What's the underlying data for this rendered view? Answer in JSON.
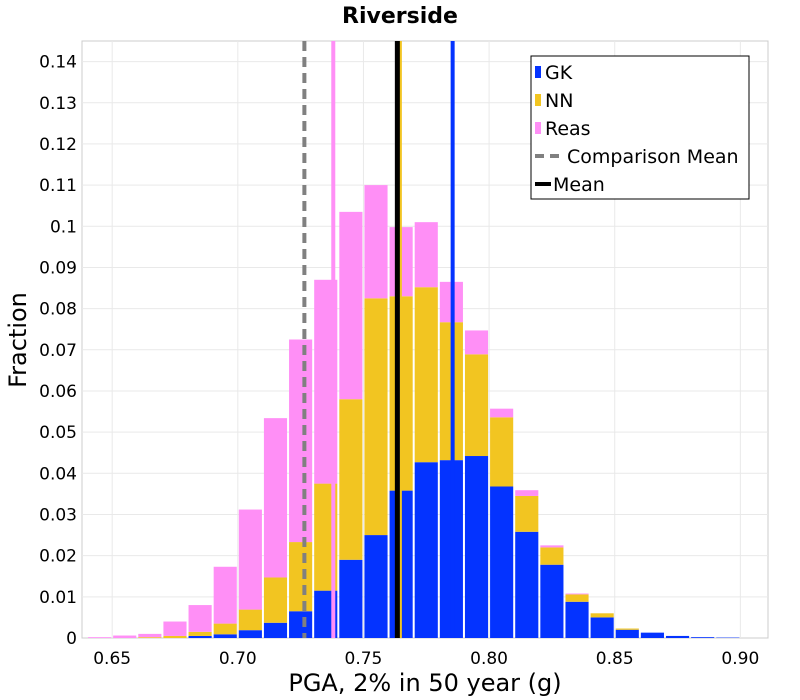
{
  "chart_data": {
    "type": "bar",
    "stacked": true,
    "title": "Riverside",
    "xlabel": "PGA, 2% in 50 year (g)",
    "ylabel": "Fraction",
    "xlim": [
      0.638,
      0.911
    ],
    "ylim": [
      0,
      0.145
    ],
    "bin_width": 0.01,
    "grid": true,
    "legend_position": "top-right",
    "x_ticks": [
      0.65,
      0.7,
      0.75,
      0.8,
      0.85,
      0.9
    ],
    "x_tick_labels": [
      "0.65",
      "0.70",
      "0.75",
      "0.80",
      "0.85",
      "0.90"
    ],
    "y_ticks": [
      0,
      0.01,
      0.02,
      0.03,
      0.04,
      0.05,
      0.06,
      0.07,
      0.08,
      0.09,
      0.1,
      0.11,
      0.12,
      0.13,
      0.14
    ],
    "y_tick_labels": [
      "0",
      "0.01",
      "0.02",
      "0.03",
      "0.04",
      "0.05",
      "0.06",
      "0.07",
      "0.08",
      "0.09",
      "0.1",
      "0.11",
      "0.12",
      "0.13",
      "0.14"
    ],
    "bin_centers": [
      0.645,
      0.655,
      0.665,
      0.675,
      0.685,
      0.695,
      0.705,
      0.715,
      0.725,
      0.735,
      0.745,
      0.755,
      0.765,
      0.775,
      0.785,
      0.795,
      0.805,
      0.815,
      0.825,
      0.835,
      0.845,
      0.855,
      0.865,
      0.875,
      0.885,
      0.895
    ],
    "series": [
      {
        "name": "GK",
        "color": "#0433ff",
        "values": [
          0,
          0,
          0,
          0,
          0.0005,
          0.0009,
          0.0019,
          0.0037,
          0.0065,
          0.0115,
          0.019,
          0.025,
          0.0358,
          0.0427,
          0.0432,
          0.0442,
          0.0368,
          0.0258,
          0.0178,
          0.0088,
          0.005,
          0.002,
          0.0013,
          0.0005,
          0.0002,
          0.0001
        ]
      },
      {
        "name": "NN",
        "color": "#f2c521",
        "values": [
          0,
          0,
          0.0002,
          0.0005,
          0.001,
          0.0026,
          0.005,
          0.011,
          0.0168,
          0.026,
          0.039,
          0.0575,
          0.0472,
          0.0425,
          0.0335,
          0.0247,
          0.0168,
          0.0087,
          0.0042,
          0.0018,
          0.001,
          0.0003,
          0,
          0,
          0,
          0
        ]
      },
      {
        "name": "Reas",
        "color": "#ff8ff6",
        "values": [
          0.0002,
          0.0006,
          0.0008,
          0.0035,
          0.0065,
          0.0138,
          0.0243,
          0.0387,
          0.0492,
          0.0495,
          0.0455,
          0.0275,
          0.0168,
          0.0158,
          0.0098,
          0.0058,
          0.0021,
          0.0014,
          0.0005,
          0.0002,
          0,
          0,
          0,
          0,
          0,
          0
        ]
      }
    ],
    "mean_lines": [
      {
        "series": "GK",
        "x": 0.7855,
        "style": "solid",
        "color": "#0433ff"
      },
      {
        "series": "NN",
        "x": 0.7645,
        "style": "solid",
        "color": "#f2c521"
      },
      {
        "series": "Reas",
        "x": 0.738,
        "style": "solid",
        "color": "#ff8ff6"
      }
    ],
    "mean_line": {
      "label": "Mean",
      "x": 0.7635,
      "style": "solid",
      "color": "#000000"
    },
    "comparison_mean_line": {
      "label": "Comparison Mean",
      "x": 0.7265,
      "style": "dashed",
      "color": "#808080"
    },
    "legend": [
      {
        "label": "GK",
        "kind": "box",
        "color": "#0433ff"
      },
      {
        "label": "NN",
        "kind": "box",
        "color": "#f2c521"
      },
      {
        "label": "Reas",
        "kind": "box",
        "color": "#ff8ff6"
      },
      {
        "label": "Comparison Mean",
        "kind": "dashed-line",
        "color": "#808080"
      },
      {
        "label": "Mean",
        "kind": "solid-line",
        "color": "#000000"
      }
    ]
  }
}
